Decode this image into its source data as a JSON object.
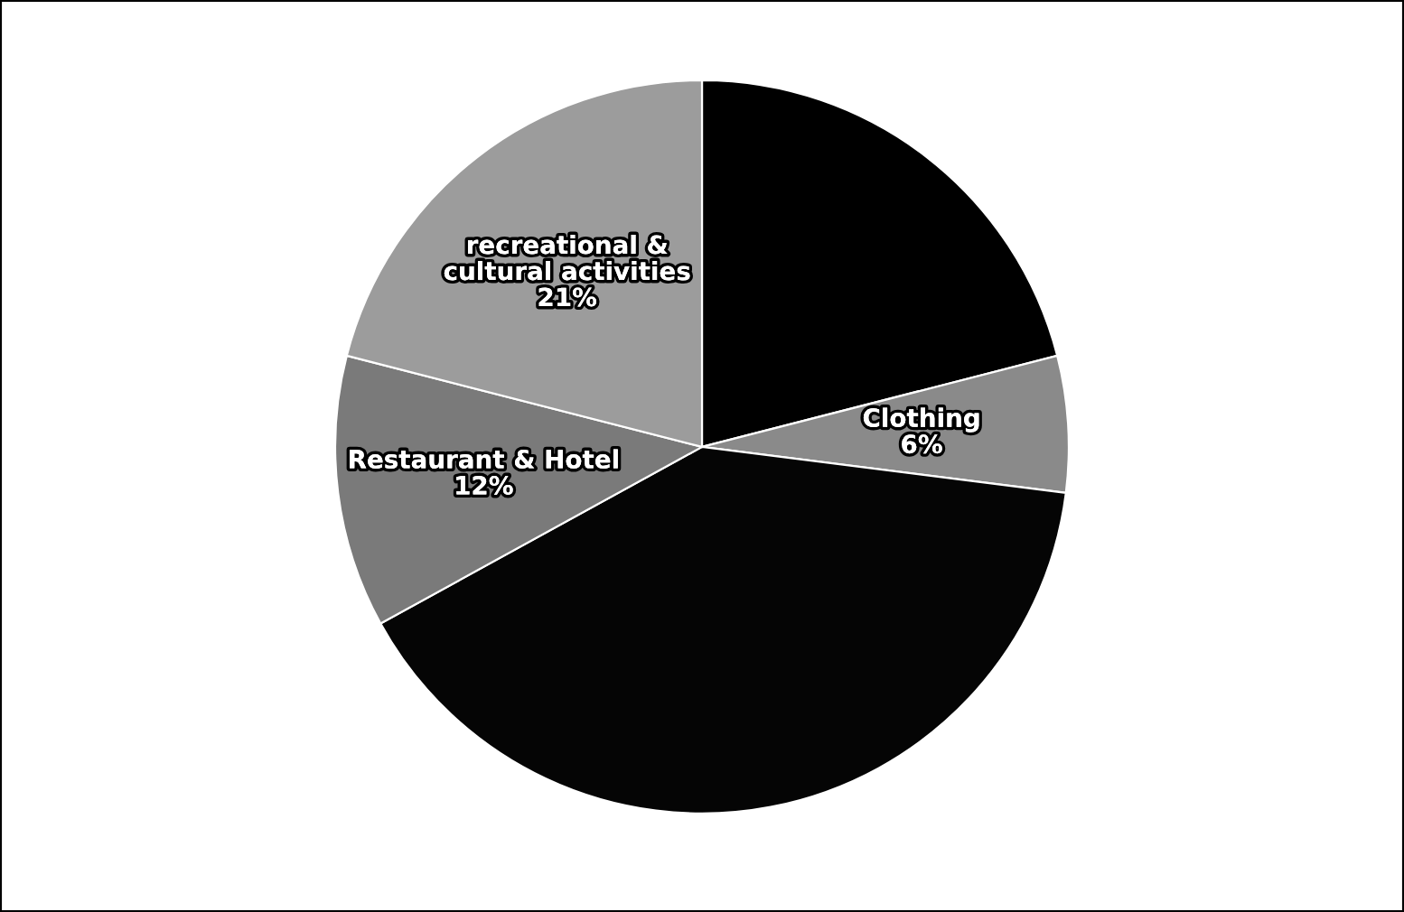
{
  "chart_data": {
    "type": "pie",
    "categories": [
      null,
      "Clothing",
      null,
      "Restaurant & Hotel",
      "recreational &\ncultural activities"
    ],
    "values": [
      21,
      6,
      40,
      12,
      21
    ],
    "value_labels": [
      null,
      "6%",
      null,
      "12%",
      "21%"
    ],
    "colors": [
      "#000000",
      "#8a8a8a",
      "#050505",
      "#7a7a7a",
      "#9c9c9c"
    ]
  }
}
